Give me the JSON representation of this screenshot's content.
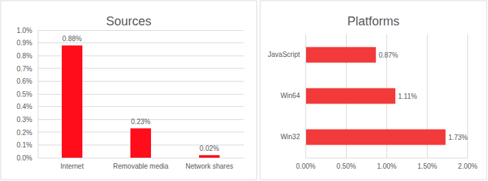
{
  "chart_data": [
    {
      "type": "bar",
      "title": "Sources",
      "categories": [
        "Internet",
        "Removable media",
        "Network shares"
      ],
      "values": [
        0.88,
        0.23,
        0.02
      ],
      "value_labels": [
        "0.88%",
        "0.23%",
        "0.02%"
      ],
      "color": "#ff0d1a",
      "ylim": [
        0,
        1
      ],
      "yticks": [
        {
          "value": 0,
          "label": "0.0%"
        },
        {
          "value": 0.1,
          "label": "0.1%"
        },
        {
          "value": 0.2,
          "label": "0.2%"
        },
        {
          "value": 0.3,
          "label": "0.3%"
        },
        {
          "value": 0.4,
          "label": "0.4%"
        },
        {
          "value": 0.5,
          "label": "0.5%"
        },
        {
          "value": 0.6,
          "label": "0.6%"
        },
        {
          "value": 0.7,
          "label": "0.7%"
        },
        {
          "value": 0.8,
          "label": "0.8%"
        },
        {
          "value": 0.9,
          "label": "0.9%"
        },
        {
          "value": 1,
          "label": "1.0%"
        }
      ],
      "grid": true,
      "data_labels": true
    },
    {
      "type": "bar",
      "orientation": "horizontal",
      "title": "Platforms",
      "categories": [
        "JavaScript",
        "Win64",
        "Win32"
      ],
      "values": [
        0.87,
        1.11,
        1.73
      ],
      "value_labels": [
        "0.87%",
        "1.11%",
        "1.73%"
      ],
      "color": "#f23a3a",
      "xlim": [
        0,
        2
      ],
      "xticks": [
        {
          "value": 0,
          "label": "0.00%"
        },
        {
          "value": 0.5,
          "label": "0.50%"
        },
        {
          "value": 1,
          "label": "1.00%"
        },
        {
          "value": 1.5,
          "label": "1.50%"
        },
        {
          "value": 2,
          "label": "2.00%"
        }
      ],
      "grid": true,
      "data_labels": true
    }
  ]
}
